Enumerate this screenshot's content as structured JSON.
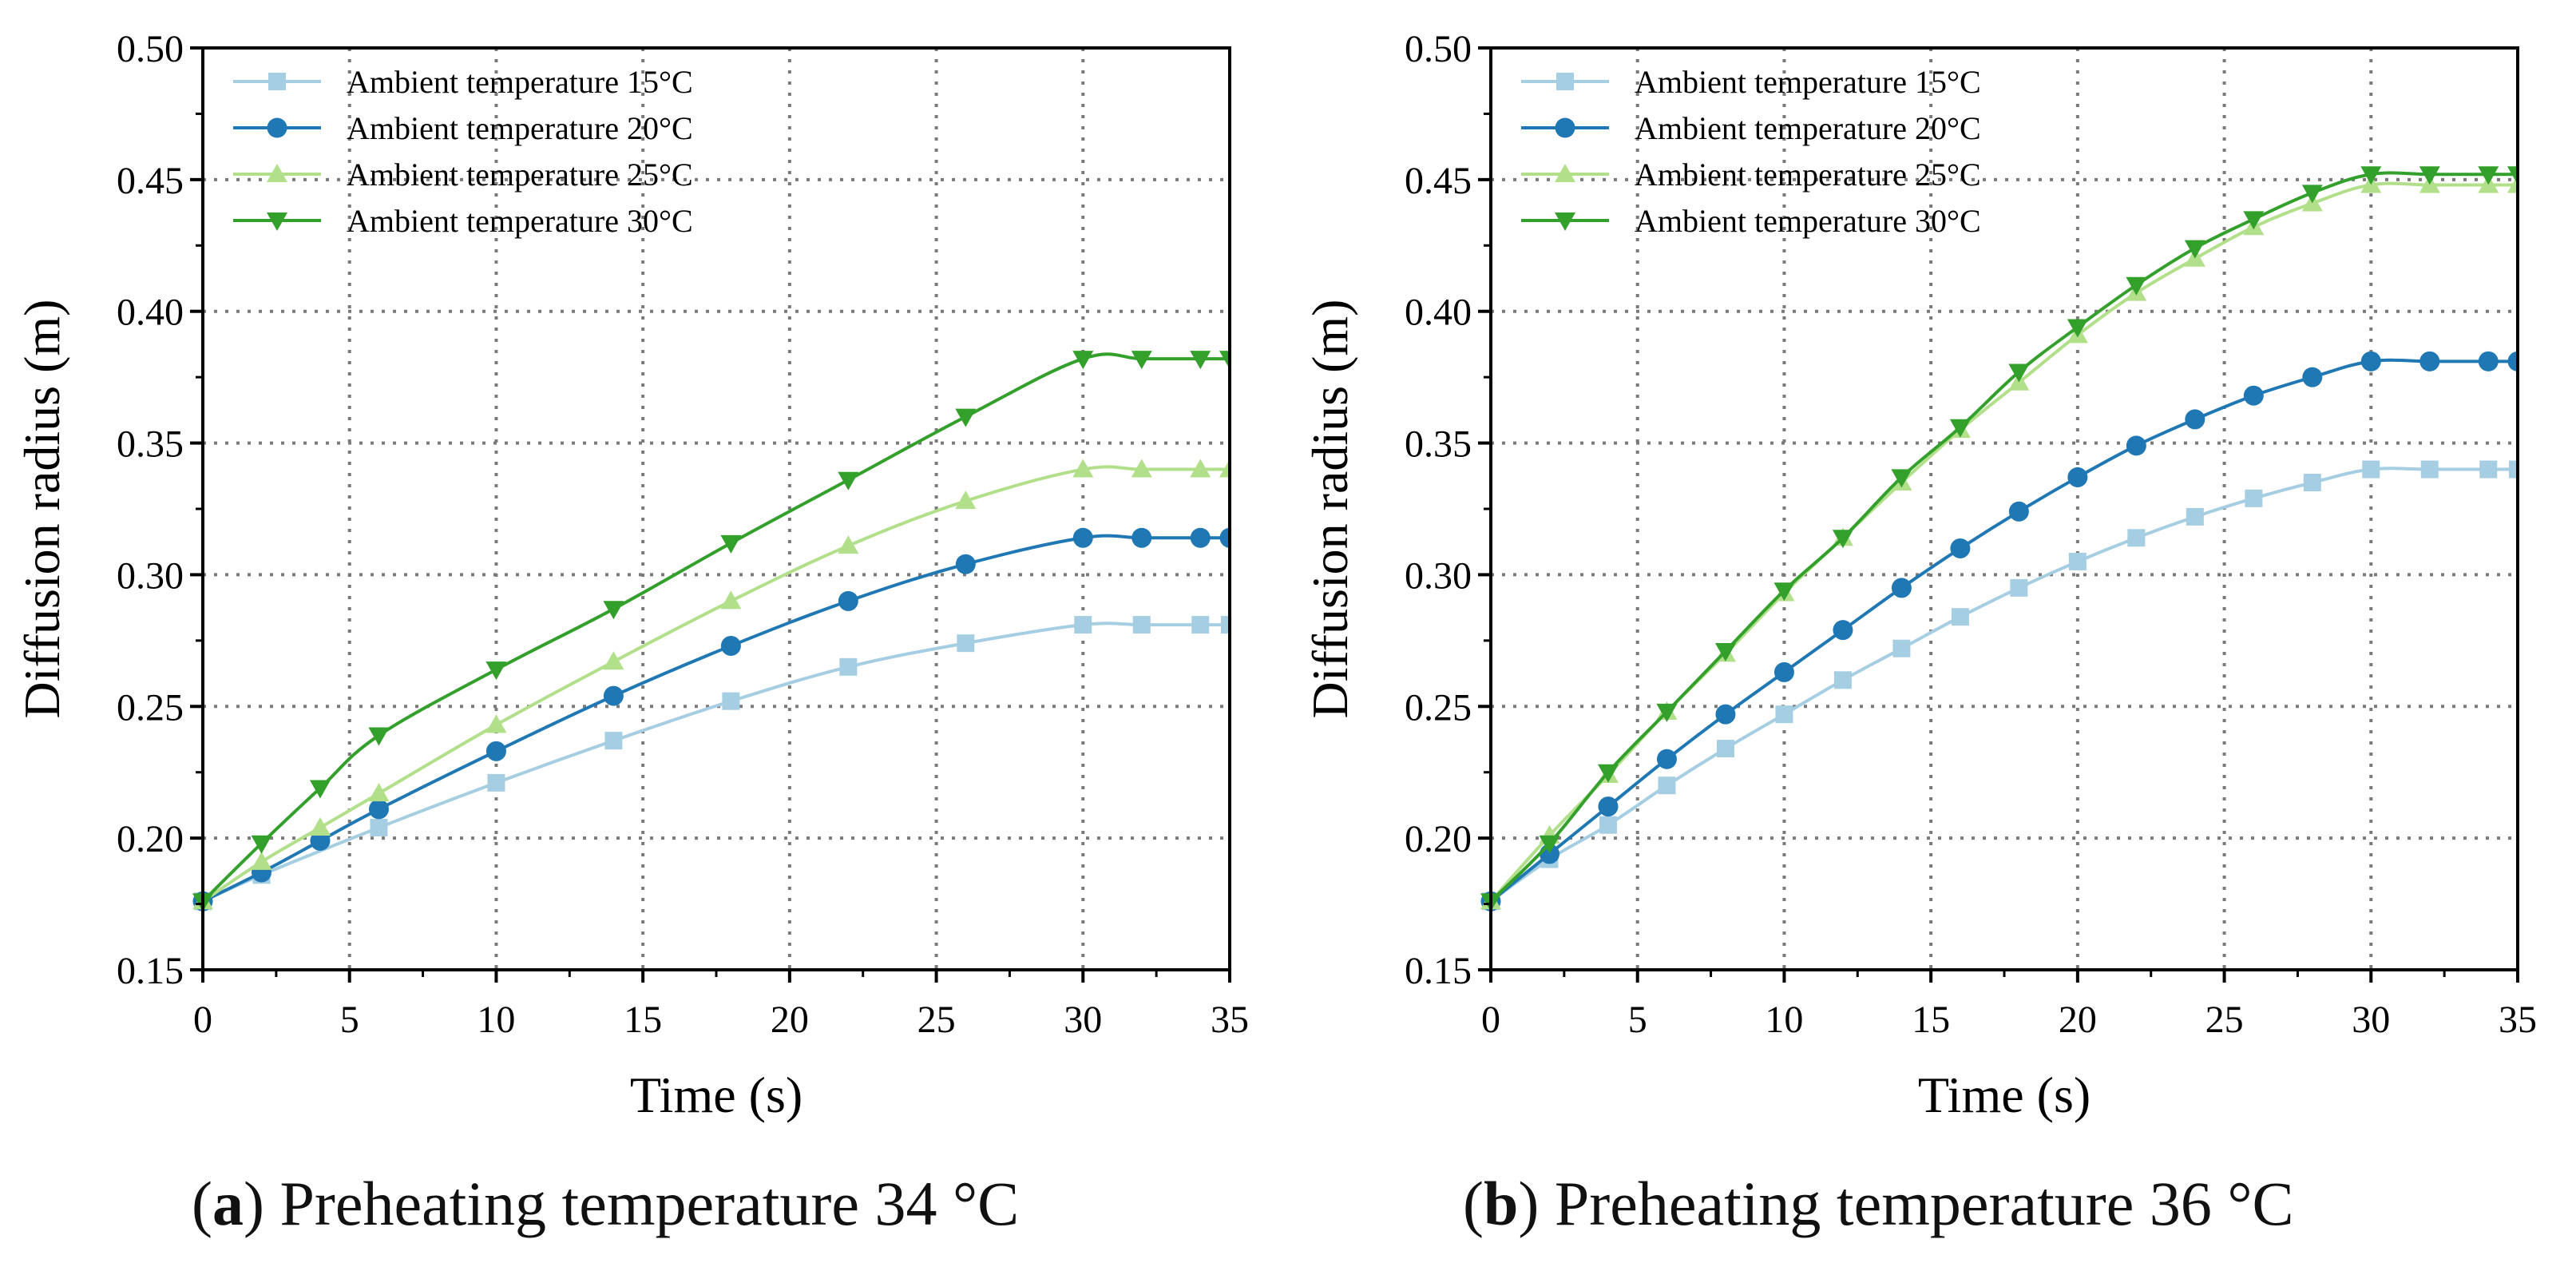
{
  "colors": {
    "s15": "#a6cee3",
    "s20": "#1f78b4",
    "s25": "#b2df8a",
    "s30": "#33a02c",
    "grid": "#7a7a7a"
  },
  "captions": [
    {
      "letter": "a",
      "open": "(",
      "close": ")",
      "text": " Preheating temperature 34 °C"
    },
    {
      "letter": "b",
      "open": "(",
      "close": ")",
      "text": " Preheating temperature 36 °C"
    }
  ],
  "chart_data": [
    {
      "type": "line",
      "title": "",
      "xlabel": "Time (s)",
      "ylabel": "Diffusion radius (m)",
      "xlim": [
        0,
        35
      ],
      "ylim": [
        0.15,
        0.5
      ],
      "xticks": [
        0,
        5,
        10,
        15,
        20,
        25,
        30,
        35
      ],
      "xtick_labels": [
        "0",
        "5",
        "10",
        "15",
        "20",
        "25",
        "30",
        "35"
      ],
      "yticks": [
        0.15,
        0.2,
        0.25,
        0.3,
        0.35,
        0.4,
        0.45,
        0.5
      ],
      "ytick_labels": [
        "0.15",
        "0.20",
        "0.25",
        "0.30",
        "0.35",
        "0.40",
        "0.45",
        "0.50"
      ],
      "grid": true,
      "legend_position": "top-left",
      "series": [
        {
          "name": "Ambient temperature 15°C",
          "key": "s15",
          "marker": "square",
          "x": [
            0,
            2,
            6,
            10,
            14,
            18,
            22,
            26,
            30,
            32,
            34,
            35
          ],
          "y": [
            0.176,
            0.186,
            0.204,
            0.221,
            0.237,
            0.252,
            0.265,
            0.274,
            0.281,
            0.281,
            0.281,
            0.281
          ]
        },
        {
          "name": "Ambient temperature 20°C",
          "key": "s20",
          "marker": "circle",
          "x": [
            0,
            2,
            4,
            6,
            10,
            14,
            18,
            22,
            26,
            30,
            32,
            34,
            35
          ],
          "y": [
            0.176,
            0.187,
            0.199,
            0.211,
            0.233,
            0.254,
            0.273,
            0.29,
            0.304,
            0.314,
            0.314,
            0.314,
            0.314
          ]
        },
        {
          "name": "Ambient temperature 25°C",
          "key": "s25",
          "marker": "triangle-up",
          "x": [
            0,
            2,
            4,
            6,
            10,
            14,
            18,
            22,
            26,
            30,
            32,
            34,
            35
          ],
          "y": [
            0.176,
            0.191,
            0.204,
            0.217,
            0.243,
            0.267,
            0.29,
            0.311,
            0.328,
            0.34,
            0.34,
            0.34,
            0.34
          ]
        },
        {
          "name": "Ambient temperature 30°C",
          "key": "s30",
          "marker": "triangle-down",
          "x": [
            0,
            2,
            4,
            6,
            10,
            14,
            18,
            22,
            26,
            30,
            32,
            34,
            35
          ],
          "y": [
            0.176,
            0.198,
            0.219,
            0.239,
            0.264,
            0.287,
            0.312,
            0.336,
            0.36,
            0.382,
            0.382,
            0.382,
            0.382
          ]
        }
      ]
    },
    {
      "type": "line",
      "title": "",
      "xlabel": "Time (s)",
      "ylabel": "Diffusion radius (m)",
      "xlim": [
        0,
        35
      ],
      "ylim": [
        0.15,
        0.5
      ],
      "xticks": [
        0,
        5,
        10,
        15,
        20,
        25,
        30,
        35
      ],
      "xtick_labels": [
        "0",
        "5",
        "10",
        "15",
        "20",
        "25",
        "30",
        "35"
      ],
      "yticks": [
        0.15,
        0.2,
        0.25,
        0.3,
        0.35,
        0.4,
        0.45,
        0.5
      ],
      "ytick_labels": [
        "0.15",
        "0.20",
        "0.25",
        "0.30",
        "0.35",
        "0.40",
        "0.45",
        "0.50"
      ],
      "grid": true,
      "legend_position": "top-left",
      "series": [
        {
          "name": "Ambient temperature 15°C",
          "key": "s15",
          "marker": "square",
          "x": [
            0,
            2,
            4,
            6,
            8,
            10,
            12,
            14,
            16,
            18,
            20,
            22,
            24,
            26,
            28,
            30,
            32,
            34,
            35
          ],
          "y": [
            0.176,
            0.192,
            0.205,
            0.22,
            0.234,
            0.247,
            0.26,
            0.272,
            0.284,
            0.295,
            0.305,
            0.314,
            0.322,
            0.329,
            0.335,
            0.34,
            0.34,
            0.34,
            0.34
          ]
        },
        {
          "name": "Ambient temperature 20°C",
          "key": "s20",
          "marker": "circle",
          "x": [
            0,
            2,
            4,
            6,
            8,
            10,
            12,
            14,
            16,
            18,
            20,
            22,
            24,
            26,
            28,
            30,
            32,
            34,
            35
          ],
          "y": [
            0.176,
            0.194,
            0.212,
            0.23,
            0.247,
            0.263,
            0.279,
            0.295,
            0.31,
            0.324,
            0.337,
            0.349,
            0.359,
            0.368,
            0.375,
            0.381,
            0.381,
            0.381,
            0.381
          ]
        },
        {
          "name": "Ambient temperature 25°C",
          "key": "s25",
          "marker": "triangle-up",
          "x": [
            0,
            2,
            4,
            6,
            8,
            10,
            12,
            14,
            16,
            18,
            20,
            22,
            24,
            26,
            28,
            30,
            32,
            34,
            35
          ],
          "y": [
            0.176,
            0.201,
            0.224,
            0.248,
            0.27,
            0.293,
            0.314,
            0.335,
            0.355,
            0.373,
            0.391,
            0.407,
            0.42,
            0.432,
            0.441,
            0.448,
            0.448,
            0.448,
            0.448
          ]
        },
        {
          "name": "Ambient temperature 30°C",
          "key": "s30",
          "marker": "triangle-down",
          "x": [
            0,
            2,
            4,
            6,
            8,
            10,
            12,
            14,
            16,
            18,
            20,
            22,
            24,
            26,
            28,
            30,
            32,
            34,
            35
          ],
          "y": [
            0.176,
            0.198,
            0.225,
            0.248,
            0.271,
            0.294,
            0.314,
            0.337,
            0.356,
            0.377,
            0.394,
            0.41,
            0.424,
            0.435,
            0.445,
            0.452,
            0.452,
            0.452,
            0.452
          ]
        }
      ]
    }
  ]
}
